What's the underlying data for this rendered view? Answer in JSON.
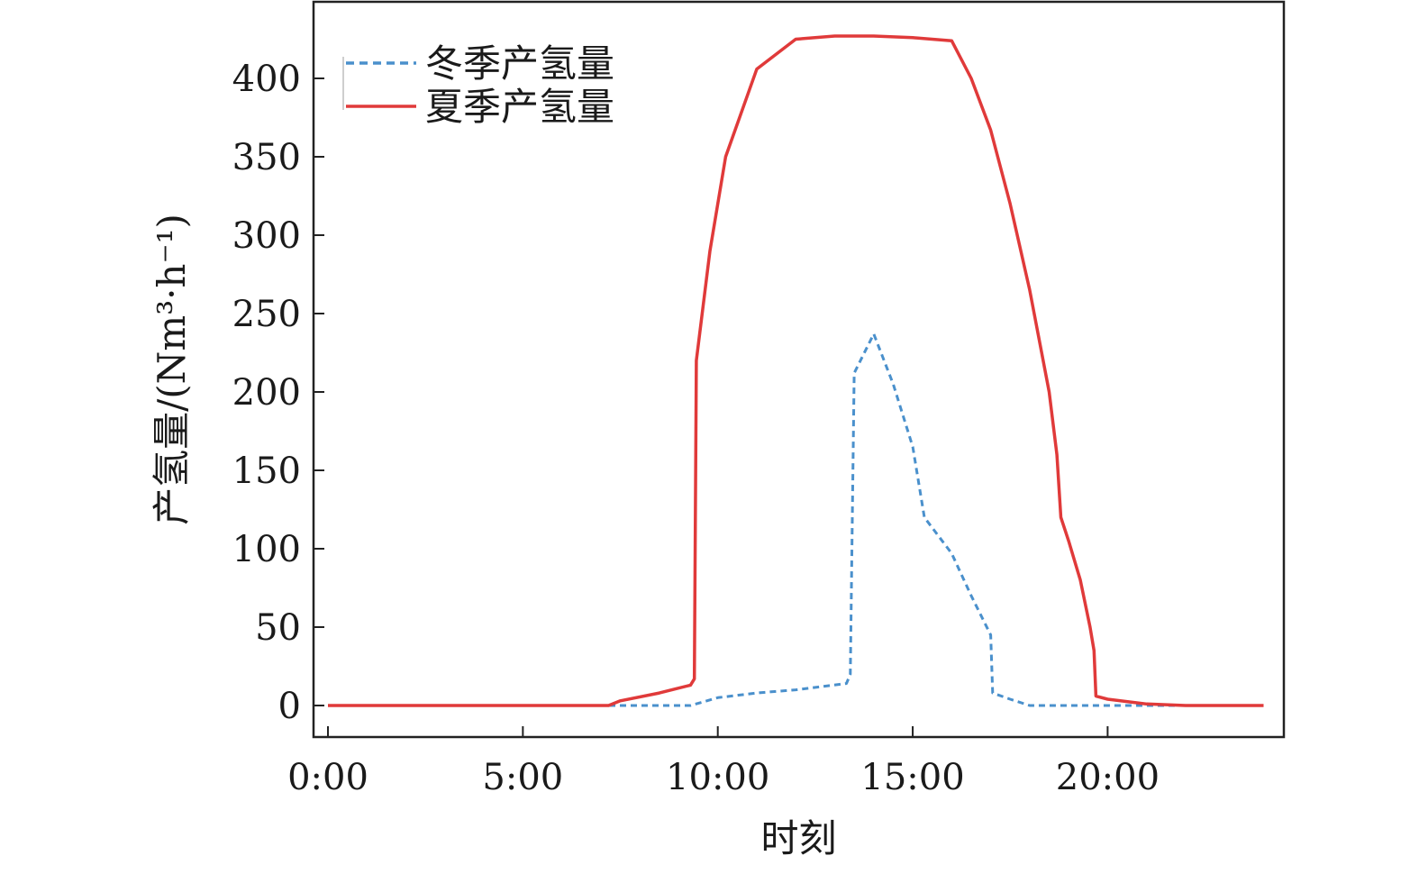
{
  "chart_data": {
    "type": "line",
    "title": "",
    "xlabel": "时刻",
    "ylabel": "产氢量/(Nm³·h⁻¹)",
    "xlim": [
      0,
      24
    ],
    "ylim": [
      -20,
      445
    ],
    "x_ticks": [
      {
        "value": 0,
        "label": "0:00"
      },
      {
        "value": 5,
        "label": "5:00"
      },
      {
        "value": 10,
        "label": "10:00"
      },
      {
        "value": 15,
        "label": "15:00"
      },
      {
        "value": 20,
        "label": "20:00"
      }
    ],
    "y_ticks": [
      0,
      50,
      100,
      150,
      200,
      250,
      300,
      350,
      400
    ],
    "grid": false,
    "legend_position": "top-left",
    "series": [
      {
        "name": "冬季产氢量",
        "color": "#4a90cc",
        "style": "dashed",
        "points": [
          [
            0,
            0
          ],
          [
            7,
            0
          ],
          [
            9.3,
            0
          ],
          [
            10,
            5
          ],
          [
            11,
            8
          ],
          [
            12,
            10
          ],
          [
            13.3,
            14
          ],
          [
            13.4,
            20
          ],
          [
            13.5,
            212
          ],
          [
            14,
            237
          ],
          [
            14.5,
            205
          ],
          [
            15,
            165
          ],
          [
            15.3,
            120
          ],
          [
            16,
            97
          ],
          [
            16.5,
            70
          ],
          [
            17,
            45
          ],
          [
            17.05,
            8
          ],
          [
            17.5,
            4
          ],
          [
            18,
            0
          ],
          [
            24,
            0
          ]
        ]
      },
      {
        "name": "夏季产氢量",
        "color": "#e03a3a",
        "style": "solid",
        "points": [
          [
            0,
            0
          ],
          [
            7.2,
            0
          ],
          [
            7.5,
            3
          ],
          [
            8.5,
            8
          ],
          [
            9.3,
            13
          ],
          [
            9.4,
            17
          ],
          [
            9.45,
            220
          ],
          [
            9.8,
            290
          ],
          [
            10.2,
            350
          ],
          [
            11,
            406
          ],
          [
            12,
            425
          ],
          [
            13,
            427
          ],
          [
            14,
            427
          ],
          [
            15,
            426
          ],
          [
            16,
            424
          ],
          [
            16.5,
            400
          ],
          [
            17,
            367
          ],
          [
            17.5,
            320
          ],
          [
            18,
            265
          ],
          [
            18.5,
            200
          ],
          [
            18.7,
            160
          ],
          [
            18.8,
            120
          ],
          [
            19,
            105
          ],
          [
            19.3,
            80
          ],
          [
            19.55,
            50
          ],
          [
            19.65,
            35
          ],
          [
            19.7,
            6
          ],
          [
            20,
            4
          ],
          [
            21,
            1
          ],
          [
            22,
            0
          ],
          [
            24,
            0
          ]
        ]
      }
    ]
  }
}
